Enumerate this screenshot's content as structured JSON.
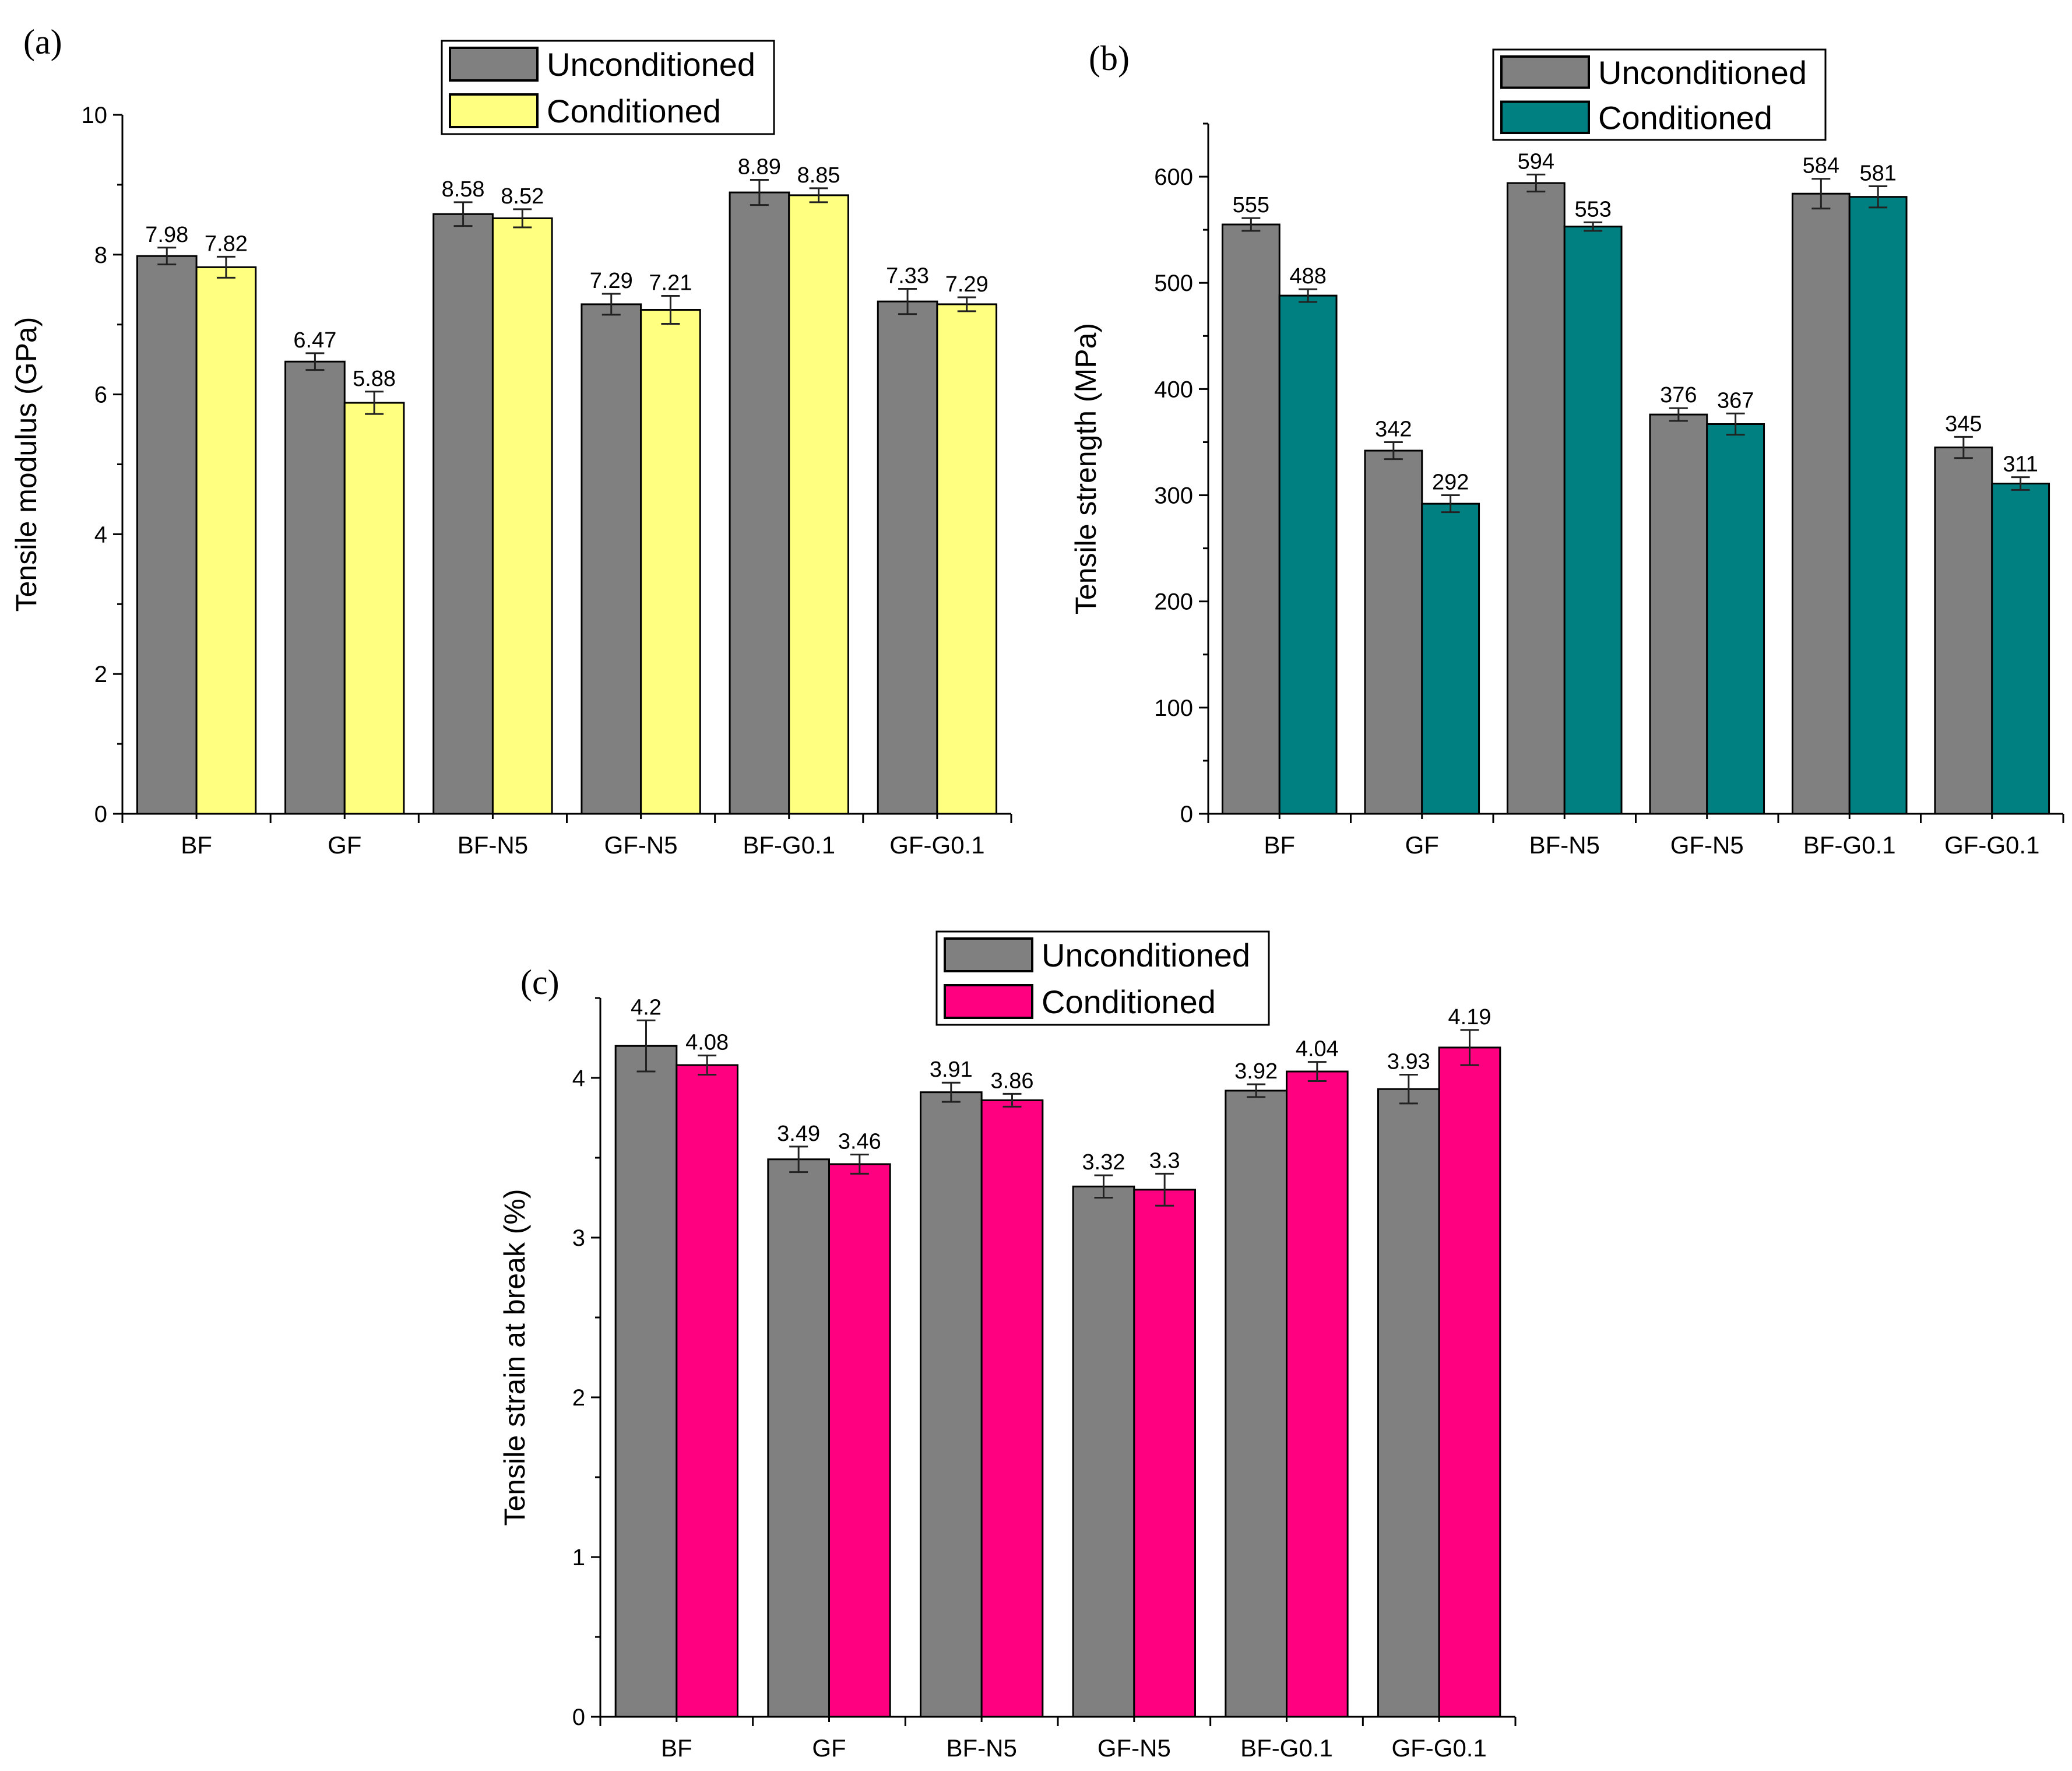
{
  "figure": {
    "background": "#ffffff",
    "axis_color": "#000000",
    "errorbar_color": "#222222",
    "bar_outline_color": "#000000"
  },
  "chart_data": [
    {
      "id": "a",
      "panel_label": "(a)",
      "type": "bar",
      "title": "",
      "xlabel": "",
      "ylabel": "Tensile modulus (GPa)",
      "ylim": [
        0,
        10
      ],
      "yticks": [
        0,
        2,
        4,
        6,
        8,
        10
      ],
      "grid": false,
      "legend": "top-center",
      "categories": [
        "BF",
        "GF",
        "BF-N5",
        "GF-N5",
        "BF-G0.1",
        "GF-G0.1"
      ],
      "series": [
        {
          "name": "Unconditioned",
          "color": "#808080",
          "values": [
            7.98,
            6.47,
            8.58,
            7.29,
            8.89,
            7.33
          ],
          "labels": [
            "7.98",
            "6.47",
            "8.58",
            "7.29",
            "8.89",
            "7.33"
          ],
          "errors": [
            0.12,
            0.12,
            0.17,
            0.15,
            0.18,
            0.18
          ]
        },
        {
          "name": "Conditioned",
          "color": "#ffff80",
          "values": [
            7.82,
            5.88,
            8.52,
            7.21,
            8.85,
            7.29
          ],
          "labels": [
            "7.82",
            "5.88",
            "8.52",
            "7.21",
            "8.85",
            "7.29"
          ],
          "errors": [
            0.15,
            0.16,
            0.13,
            0.2,
            0.1,
            0.1
          ]
        }
      ]
    },
    {
      "id": "b",
      "panel_label": "(b)",
      "type": "bar",
      "title": "",
      "xlabel": "",
      "ylabel": "Tensile strength (MPa)",
      "ylim": [
        0,
        650
      ],
      "yticks": [
        0,
        100,
        200,
        300,
        400,
        500,
        600
      ],
      "grid": false,
      "legend": "top-center",
      "categories": [
        "BF",
        "GF",
        "BF-N5",
        "GF-N5",
        "BF-G0.1",
        "GF-G0.1"
      ],
      "series": [
        {
          "name": "Unconditioned",
          "color": "#808080",
          "values": [
            555,
            342,
            594,
            376,
            584,
            345
          ],
          "labels": [
            "555",
            "342",
            "594",
            "376",
            "584",
            "345"
          ],
          "errors": [
            6,
            8,
            8,
            6,
            14,
            10
          ]
        },
        {
          "name": "Conditioned",
          "color": "#008080",
          "values": [
            488,
            292,
            553,
            367,
            581,
            311
          ],
          "labels": [
            "488",
            "292",
            "553",
            "367",
            "581",
            "311"
          ],
          "errors": [
            6,
            8,
            4,
            10,
            10,
            6
          ]
        }
      ]
    },
    {
      "id": "c",
      "panel_label": "(c)",
      "type": "bar",
      "title": "",
      "xlabel": "",
      "ylabel": "Tensile strain at break (%)",
      "ylim": [
        0,
        4.5
      ],
      "yticks": [
        0,
        1,
        2,
        3,
        4
      ],
      "grid": false,
      "legend": "top-center",
      "categories": [
        "BF",
        "GF",
        "BF-N5",
        "GF-N5",
        "BF-G0.1",
        "GF-G0.1"
      ],
      "series": [
        {
          "name": "Unconditioned",
          "color": "#808080",
          "values": [
            4.2,
            3.49,
            3.91,
            3.32,
            3.92,
            3.93
          ],
          "labels": [
            "4.2",
            "3.49",
            "3.91",
            "3.32",
            "3.92",
            "3.93"
          ],
          "errors": [
            0.16,
            0.08,
            0.06,
            0.07,
            0.04,
            0.09
          ]
        },
        {
          "name": "Conditioned",
          "color": "#ff0080",
          "values": [
            4.08,
            3.46,
            3.86,
            3.3,
            4.04,
            4.19
          ],
          "labels": [
            "4.08",
            "3.46",
            "3.86",
            "3.3",
            "4.04",
            "4.19"
          ],
          "errors": [
            0.06,
            0.06,
            0.04,
            0.1,
            0.06,
            0.11
          ]
        }
      ]
    }
  ]
}
